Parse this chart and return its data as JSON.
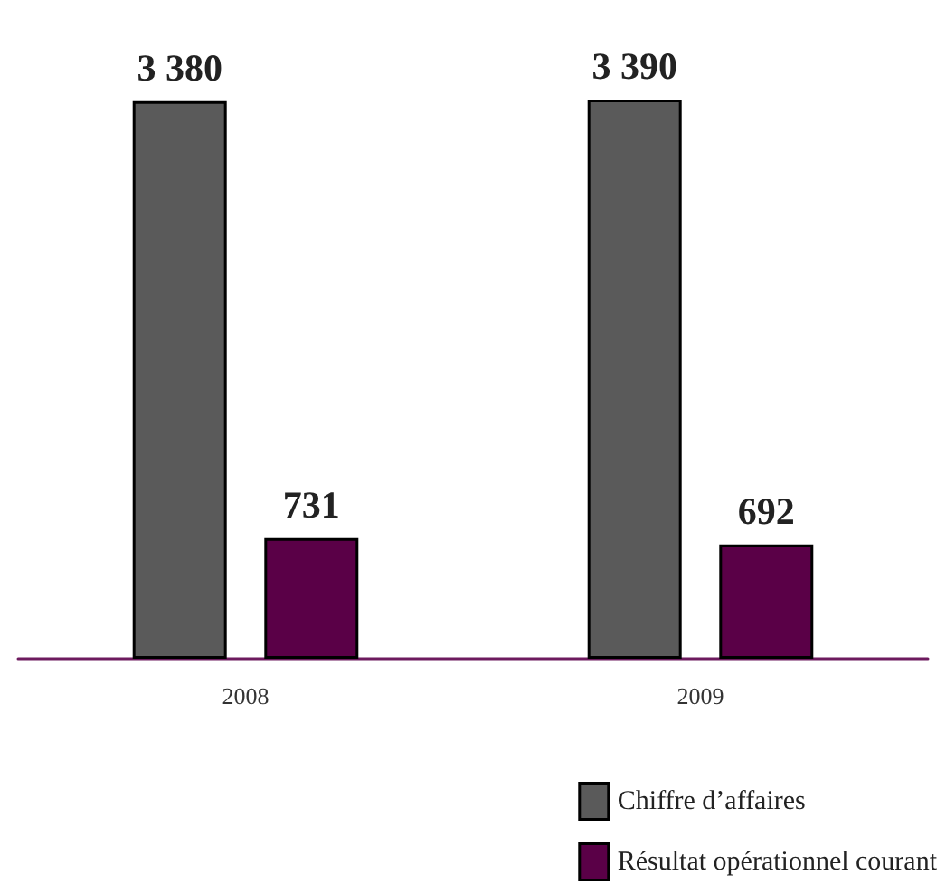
{
  "chart_data": {
    "type": "bar",
    "categories": [
      "2008",
      "2009"
    ],
    "series": [
      {
        "name": "Chiffre d’affaires",
        "color": "#5a5a5a",
        "values": [
          3380,
          3390
        ],
        "value_labels": [
          "3 380",
          "3 390"
        ]
      },
      {
        "name": "Résultat opérationnel courant",
        "color": "#5a0047",
        "values": [
          731,
          692
        ],
        "value_labels": [
          "731",
          "692"
        ]
      }
    ],
    "legend": "bottom right",
    "grid": false
  }
}
